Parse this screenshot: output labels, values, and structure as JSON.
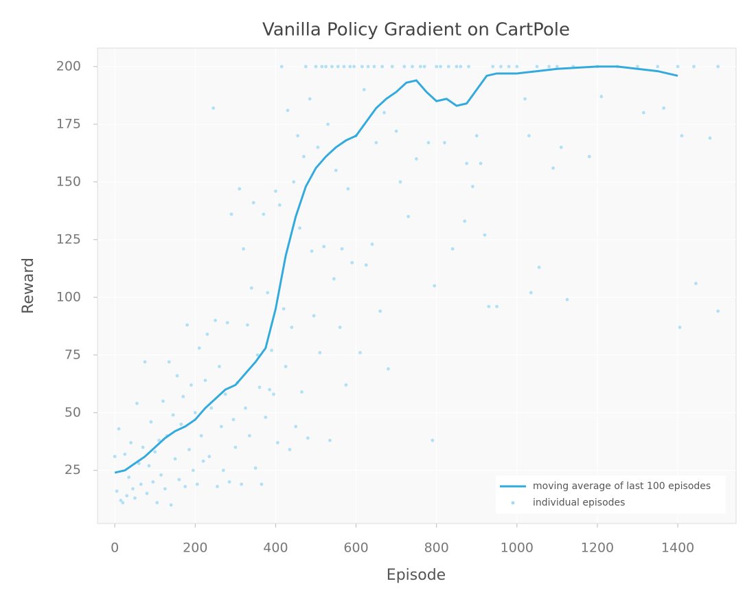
{
  "chart_data": {
    "type": "line",
    "title": "Vanilla Policy Gradient on CartPole",
    "x_label": "Episode",
    "y_label": "Reward",
    "xlim": [
      -43,
      1545
    ],
    "ylim": [
      2,
      208
    ],
    "xticks": [
      0,
      200,
      400,
      600,
      800,
      1000,
      1200,
      1400
    ],
    "yticks": [
      25,
      50,
      75,
      100,
      125,
      150,
      175,
      200
    ],
    "grid": true,
    "legend": "lower right",
    "series": [
      {
        "name": "moving average of last 100 episodes",
        "type": "line",
        "color": "#33aadd",
        "x": [
          0,
          25,
          50,
          75,
          100,
          125,
          150,
          175,
          200,
          225,
          250,
          275,
          300,
          325,
          350,
          375,
          400,
          425,
          450,
          475,
          500,
          525,
          550,
          575,
          600,
          625,
          650,
          675,
          700,
          725,
          750,
          775,
          800,
          825,
          850,
          875,
          900,
          925,
          950,
          975,
          1000,
          1050,
          1100,
          1150,
          1200,
          1250,
          1300,
          1350,
          1400
        ],
        "values": [
          24,
          25,
          28,
          31,
          35,
          39,
          42,
          44,
          47,
          52,
          56,
          60,
          62,
          67,
          72,
          78,
          95,
          118,
          135,
          148,
          156,
          161,
          165,
          168,
          170,
          176,
          182,
          186,
          189,
          193,
          194,
          189,
          185,
          186,
          183,
          184,
          190,
          196,
          197,
          197,
          197,
          198,
          199,
          199.5,
          200,
          200,
          199,
          198,
          196
        ]
      },
      {
        "name": "individual episodes",
        "type": "scatter",
        "color": "#9fd9f3",
        "x": [
          0,
          5,
          10,
          15,
          20,
          25,
          30,
          35,
          40,
          45,
          50,
          55,
          60,
          65,
          70,
          75,
          80,
          85,
          90,
          95,
          100,
          105,
          110,
          115,
          120,
          125,
          130,
          135,
          140,
          145,
          150,
          155,
          160,
          165,
          170,
          175,
          180,
          185,
          190,
          195,
          200,
          205,
          210,
          215,
          220,
          225,
          230,
          235,
          240,
          245,
          250,
          255,
          260,
          265,
          270,
          275,
          280,
          285,
          290,
          295,
          300,
          305,
          310,
          315,
          320,
          325,
          330,
          335,
          340,
          345,
          350,
          355,
          360,
          365,
          370,
          375,
          380,
          385,
          390,
          395,
          400,
          405,
          410,
          415,
          420,
          425,
          430,
          435,
          440,
          445,
          450,
          455,
          460,
          465,
          470,
          475,
          480,
          485,
          490,
          495,
          500,
          505,
          510,
          515,
          520,
          525,
          530,
          535,
          540,
          545,
          550,
          555,
          560,
          565,
          570,
          575,
          580,
          585,
          590,
          595,
          600,
          610,
          615,
          620,
          625,
          630,
          640,
          645,
          650,
          660,
          665,
          670,
          680,
          690,
          700,
          710,
          720,
          730,
          740,
          750,
          760,
          770,
          780,
          790,
          795,
          800,
          810,
          820,
          830,
          840,
          850,
          860,
          870,
          875,
          880,
          890,
          900,
          910,
          920,
          930,
          940,
          950,
          960,
          980,
          1000,
          1020,
          1030,
          1035,
          1050,
          1055,
          1080,
          1090,
          1100,
          1110,
          1125,
          1140,
          1180,
          1200,
          1210,
          1250,
          1300,
          1315,
          1350,
          1365,
          1400,
          1405,
          1410,
          1440,
          1445,
          1480,
          1500,
          1500
        ],
        "values": [
          31,
          16,
          43,
          12,
          11,
          32,
          14,
          22,
          37,
          17,
          13,
          54,
          28,
          19,
          35,
          72,
          15,
          27,
          46,
          20,
          33,
          11,
          38,
          23,
          55,
          17,
          40,
          72,
          10,
          49,
          30,
          66,
          21,
          45,
          57,
          18,
          88,
          34,
          62,
          25,
          50,
          19,
          78,
          40,
          29,
          64,
          84,
          31,
          52,
          182,
          90,
          18,
          70,
          44,
          25,
          58,
          89,
          20,
          136,
          47,
          35,
          63,
          147,
          19,
          121,
          52,
          88,
          40,
          104,
          141,
          26,
          75,
          61,
          19,
          136,
          48,
          102,
          60,
          77,
          58,
          146,
          37,
          140,
          200,
          95,
          70,
          181,
          34,
          87,
          150,
          44,
          170,
          130,
          59,
          161,
          200,
          39,
          186,
          120,
          92,
          200,
          165,
          76,
          200,
          122,
          200,
          175,
          38,
          200,
          108,
          155,
          200,
          87,
          121,
          200,
          62,
          147,
          200,
          115,
          200,
          170,
          76,
          200,
          190,
          114,
          200,
          123,
          200,
          167,
          94,
          200,
          180,
          69,
          200,
          172,
          150,
          200,
          135,
          200,
          160,
          200,
          200,
          167,
          38,
          105,
          200,
          200,
          167,
          200,
          121,
          200,
          200,
          133,
          158,
          200,
          148,
          170,
          158,
          127,
          96,
          200,
          96,
          200,
          200,
          200,
          186,
          170,
          102,
          200,
          113,
          200,
          156,
          200,
          165,
          99,
          200,
          161,
          200,
          187,
          200,
          200,
          180,
          200,
          182,
          200,
          87,
          170,
          200,
          106,
          169,
          94,
          200
        ]
      }
    ]
  }
}
